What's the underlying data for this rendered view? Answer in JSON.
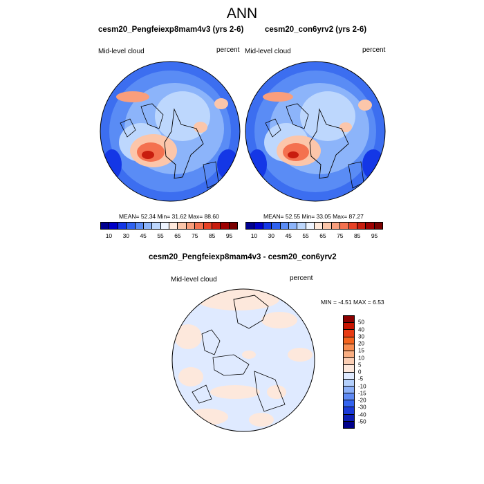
{
  "title": "ANN",
  "panels": [
    {
      "title": "cesm20_Pengfeiexp8mam4v3 (yrs 2-6)",
      "variable": "Mid-level cloud",
      "units": "percent",
      "stats": "MEAN=  52.34  Min=  31.62  Max=  88.60"
    },
    {
      "title": "cesm20_con6yrv2 (yrs 2-6)",
      "variable": "Mid-level cloud",
      "units": "percent",
      "stats": "MEAN=  52.55  Min=  33.05  Max=  87.27"
    }
  ],
  "panel_colorbar": {
    "labels": [
      "10",
      "30",
      "45",
      "55",
      "65",
      "75",
      "85",
      "95"
    ],
    "colors": [
      "#00008f",
      "#0000c8",
      "#1437e6",
      "#2f62f0",
      "#5a8cf5",
      "#8cb4fa",
      "#bdd7fd",
      "#eef4ff",
      "#ffe9dc",
      "#fcc6aa",
      "#f99e7c",
      "#f4714f",
      "#e84226",
      "#c81d0e",
      "#9e0000",
      "#7a0000"
    ]
  },
  "difference": {
    "title": "cesm20_Pengfeiexp8mam4v3 - cesm20_con6yrv2",
    "variable": "Mid-level cloud",
    "units": "percent",
    "minmax": "MIN =  -4.51 MAX =   6.53",
    "colorbar_labels": [
      "50",
      "40",
      "30",
      "20",
      "15",
      "10",
      "5",
      "0",
      "-5",
      "-10",
      "-15",
      "-20",
      "-30",
      "-40",
      "-50"
    ],
    "colorbar_colors": [
      "#8b0000",
      "#c81400",
      "#e83c14",
      "#f4641e",
      "#f78c50",
      "#f9ae82",
      "#fbceb4",
      "#fde8dc",
      "#dfeaff",
      "#b4d0fc",
      "#8cb0f8",
      "#5f8af4",
      "#3464f0",
      "#1a3ad8",
      "#0c1eb4",
      "#00008b"
    ]
  }
}
